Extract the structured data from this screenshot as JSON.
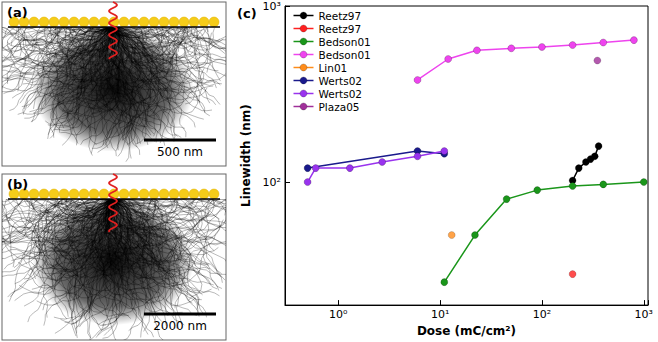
{
  "chart_data": {
    "type": "line",
    "title": "(c)",
    "xlabel": "Dose (mC/cm²)",
    "ylabel": "Linewidth (nm)",
    "log": true,
    "grid": false,
    "legend": "upper left",
    "marker": "circle",
    "xlim": [
      0.3,
      1100
    ],
    "ylim": [
      20,
      1000
    ],
    "xticks": [
      {
        "value": 1,
        "label": "10⁰"
      },
      {
        "value": 10,
        "label": "10¹"
      },
      {
        "value": 100,
        "label": "10²"
      },
      {
        "value": 1000,
        "label": "10³"
      }
    ],
    "yticks": [
      {
        "value": 100,
        "label": "10²"
      },
      {
        "value": 1000,
        "label": "10³"
      }
    ],
    "series": [
      {
        "name": "Reetz97",
        "color": "#000000",
        "type": "line",
        "x": [
          200,
          230,
          270,
          300,
          330,
          360
        ],
        "values": [
          102,
          120,
          130,
          135,
          140,
          160
        ]
      },
      {
        "name": "Reetz97",
        "color": "#ff2020",
        "type": "scatter",
        "x": [
          200
        ],
        "values": [
          30
        ]
      },
      {
        "name": "Bedson01",
        "color": "#1a961a",
        "type": "line",
        "x": [
          11,
          22,
          45,
          90,
          200,
          400,
          1000
        ],
        "values": [
          27,
          50,
          80,
          90,
          95,
          97,
          100
        ]
      },
      {
        "name": "Bedson01",
        "color": "#ee44ee",
        "type": "line",
        "x": [
          6,
          12,
          23,
          50,
          100,
          200,
          400,
          800
        ],
        "values": [
          380,
          500,
          560,
          575,
          585,
          600,
          620,
          640
        ]
      },
      {
        "name": "Lin01",
        "color": "#ff8c1a",
        "type": "scatter",
        "x": [
          13
        ],
        "values": [
          50
        ]
      },
      {
        "name": "Werts02",
        "color": "#1a1a8c",
        "type": "line",
        "x": [
          0.5,
          6,
          11
        ],
        "values": [
          120,
          150,
          145
        ]
      },
      {
        "name": "Werts02",
        "color": "#9933ee",
        "type": "line",
        "x": [
          0.5,
          0.6,
          1.3,
          2.7,
          6,
          11
        ],
        "values": [
          100,
          120,
          120,
          130,
          140,
          150
        ]
      },
      {
        "name": "Plaza05",
        "color": "#a0309a",
        "type": "scatter",
        "x": [
          350
        ],
        "values": [
          490
        ]
      }
    ]
  },
  "panels": [
    {
      "label": "(a)",
      "scale_bar": "500 nm"
    },
    {
      "label": "(b)",
      "scale_bar": "2000 nm"
    }
  ]
}
